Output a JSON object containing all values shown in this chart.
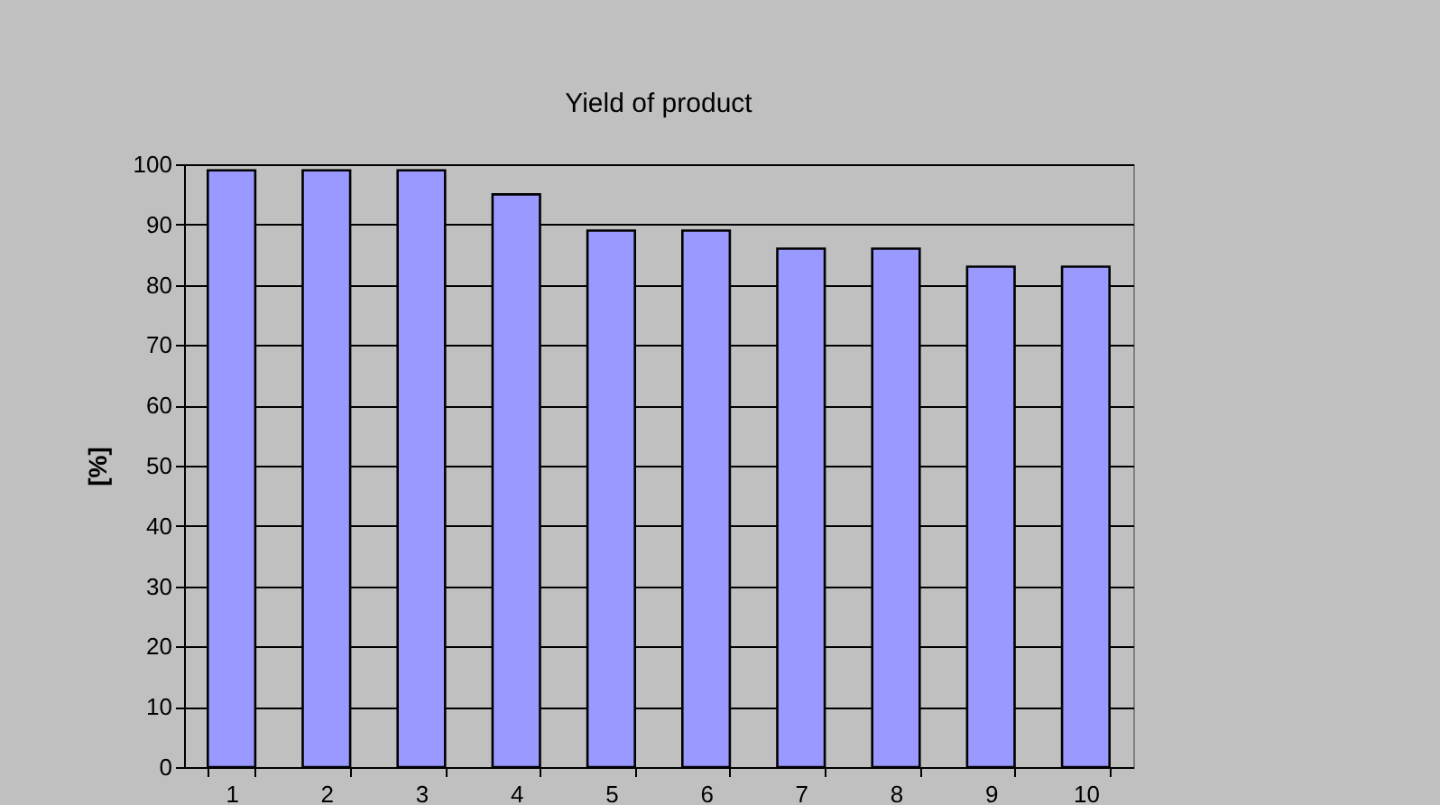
{
  "chart_data": {
    "type": "bar",
    "title": "Yield of product",
    "ylabel": "[%]",
    "categories": [
      "1",
      "2",
      "3",
      "4",
      "5",
      "6",
      "7",
      "8",
      "9",
      "10"
    ],
    "values": [
      99,
      99,
      99,
      95,
      89,
      89,
      86,
      86,
      83,
      83
    ],
    "color": "#9999ff",
    "ylim": [
      0,
      100
    ],
    "yticks": [
      0,
      10,
      20,
      30,
      40,
      50,
      60,
      70,
      80,
      90,
      100
    ],
    "grid": "y"
  }
}
